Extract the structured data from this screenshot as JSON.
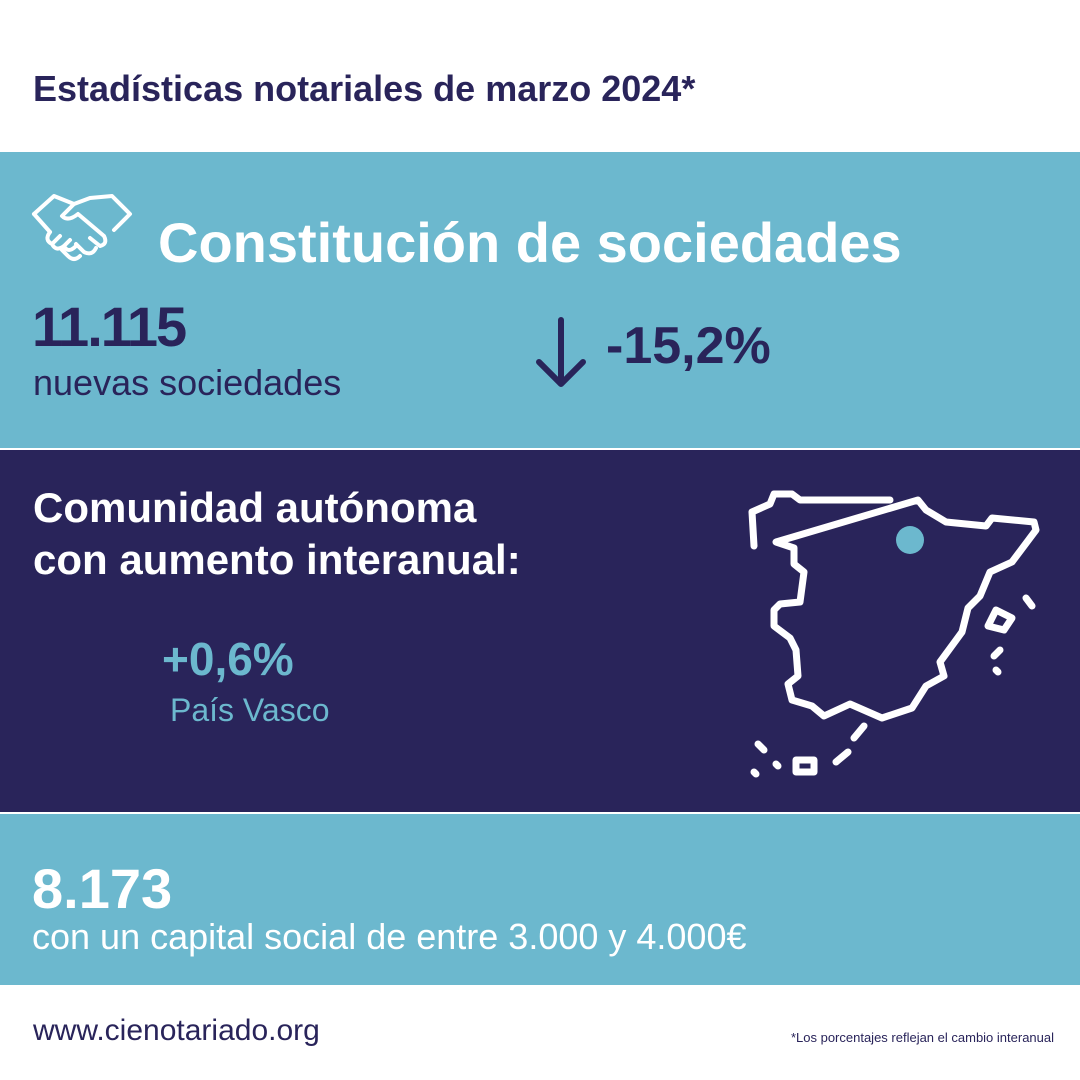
{
  "header": {
    "title": "Estadísticas notariales de marzo 2024*"
  },
  "section1": {
    "heading": "Constitución de sociedades",
    "count": "11.115",
    "count_label": "nuevas sociedades",
    "change": "-15,2%"
  },
  "section2": {
    "heading": [
      "Comunidad autónoma",
      "con aumento interanual:"
    ],
    "change": "+0,6%",
    "region": "País Vasco"
  },
  "section3": {
    "count": "8.173",
    "label": "con un capital social de entre 3.000 y 4.000€"
  },
  "footer": {
    "url": "www.cienotariado.org",
    "note": "*Los porcentajes reflejan el cambio interanual"
  }
}
